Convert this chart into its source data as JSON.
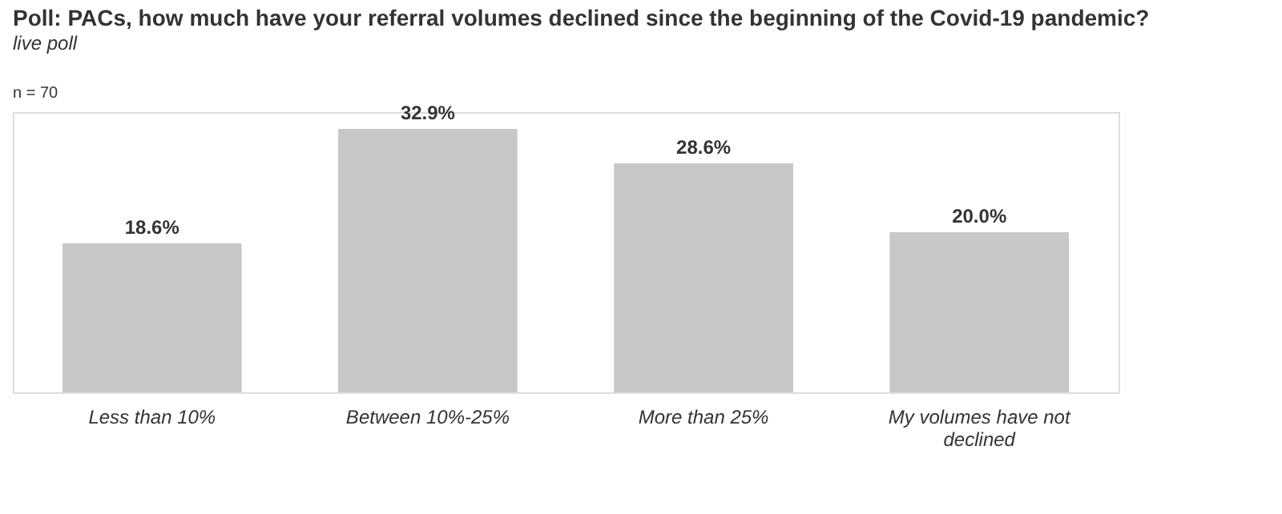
{
  "chart_data": {
    "type": "bar",
    "title": "Poll: PACs, how much have your referral volumes declined since the beginning of the Covid-19 pandemic?",
    "subtitle": "live poll",
    "annotations": [
      "n = 70"
    ],
    "categories": [
      "Less than 10%",
      "Between 10%-25%",
      "More than 25%",
      "My volumes have not declined"
    ],
    "values": [
      18.6,
      32.9,
      28.6,
      20.0
    ],
    "value_labels": [
      "18.6%",
      "32.9%",
      "28.6%",
      "20.0%"
    ],
    "color": "#c8c8c8",
    "grid": false
  }
}
